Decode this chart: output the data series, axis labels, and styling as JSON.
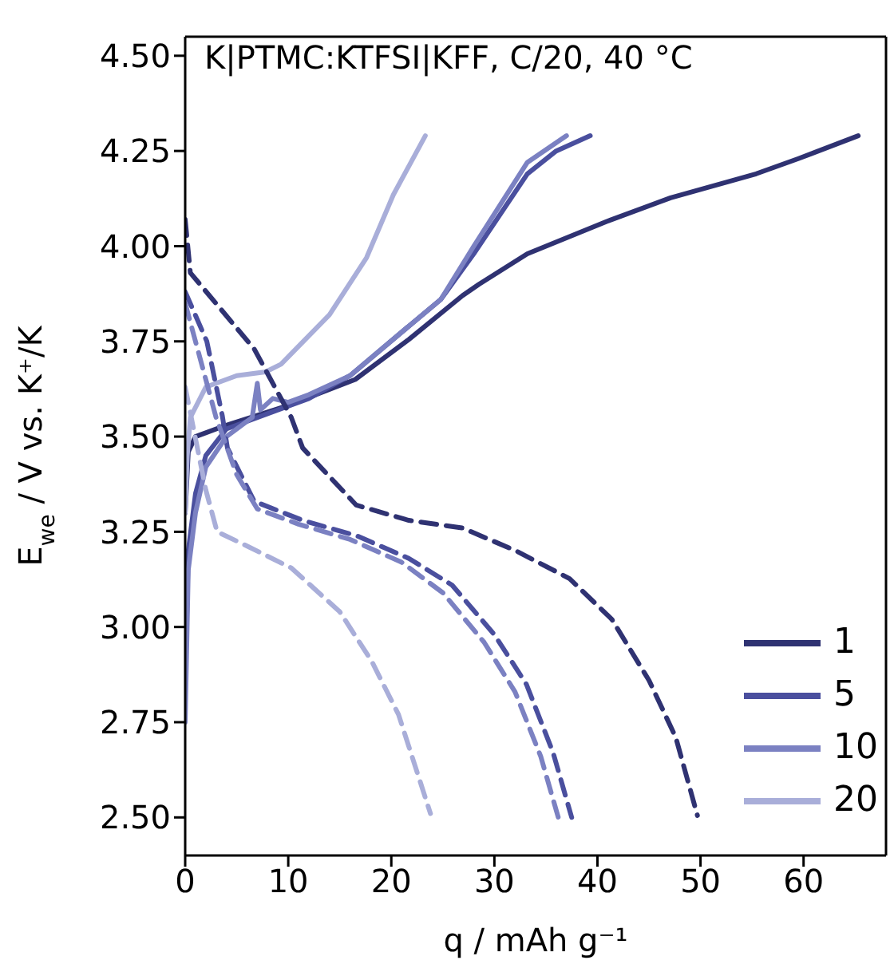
{
  "chart_data": {
    "type": "line",
    "xlabel": "q / mAh g⁻¹",
    "ylabel": "E$_{we}$ / V vs. K⁺/K",
    "annotations": [
      "K|PTMC:KTFSI|KFF, C/20, 40 °C"
    ],
    "xlim": [
      0,
      68
    ],
    "xticks": [
      0,
      10,
      20,
      30,
      40,
      50,
      60
    ],
    "ylim": [
      2.4,
      4.55
    ],
    "yticks": [
      {
        "value": 2.5,
        "label": "2.50"
      },
      {
        "value": 2.75,
        "label": "2.75"
      },
      {
        "value": 3,
        "label": "3.00"
      },
      {
        "value": 3.25,
        "label": "3.25"
      },
      {
        "value": 3.5,
        "label": "3.50"
      },
      {
        "value": 3.75,
        "label": "3.75"
      },
      {
        "value": 4,
        "label": "4.00"
      },
      {
        "value": 4.25,
        "label": "4.25"
      },
      {
        "value": 4.5,
        "label": "4.50"
      }
    ],
    "legend": "bottom right",
    "marker": "none",
    "series": [
      {
        "name": "1",
        "color": "#2f3272",
        "line_style": "solid",
        "x": [
          0,
          0.3,
          1,
          4,
          9.8,
          16.5,
          21.7,
          26.9,
          28.5,
          33.2,
          40.9,
          47.1,
          55.4,
          59.5,
          65.3
        ],
        "values": [
          3.3,
          3.46,
          3.5,
          3.53,
          3.58,
          3.65,
          3.755,
          3.87,
          3.9,
          3.98,
          4.065,
          4.127,
          4.19,
          4.23,
          4.29
        ]
      },
      {
        "name": "5",
        "color": "#4a4f9e",
        "line_style": "solid",
        "x": [
          0,
          0.3,
          1,
          2,
          4,
          8,
          12,
          16,
          21.7,
          24.8,
          28,
          33.2,
          36,
          39.3
        ],
        "values": [
          2.85,
          3.2,
          3.35,
          3.45,
          3.52,
          3.56,
          3.6,
          3.66,
          3.79,
          3.86,
          3.98,
          4.19,
          4.25,
          4.29
        ]
      },
      {
        "name": "10",
        "color": "#7b81c2",
        "line_style": "solid",
        "x": [
          0,
          0.3,
          1,
          2,
          4,
          6.5,
          7,
          7.3,
          8.5,
          10,
          12,
          16,
          21.7,
          24.8,
          28,
          33.2,
          37
        ],
        "values": [
          2.75,
          3.15,
          3.3,
          3.42,
          3.5,
          3.55,
          3.64,
          3.57,
          3.6,
          3.59,
          3.61,
          3.66,
          3.79,
          3.86,
          4.0,
          4.22,
          4.29
        ]
      },
      {
        "name": "20",
        "color": "#a9aed9",
        "line_style": "solid",
        "x": [
          0,
          0.2,
          0.5,
          2,
          5,
          7.8,
          9.3,
          14,
          17.6,
          20.2,
          23.3
        ],
        "values": [
          3.3,
          3.45,
          3.55,
          3.63,
          3.66,
          3.67,
          3.69,
          3.82,
          3.97,
          4.135,
          4.29
        ]
      },
      {
        "color": "#2f3272",
        "line_style": "dashed",
        "x": [
          0,
          0.5,
          6.7,
          10.3,
          11.4,
          16.6,
          21.7,
          26.9,
          32.1,
          37.3,
          41.4,
          45,
          47.6,
          49.7
        ],
        "values": [
          4.07,
          3.93,
          3.73,
          3.55,
          3.47,
          3.32,
          3.28,
          3.26,
          3.2,
          3.127,
          3.02,
          2.86,
          2.71,
          2.505
        ]
      },
      {
        "color": "#4a4f9e",
        "line_style": "dashed",
        "x": [
          0,
          2.1,
          3.6,
          4.1,
          6.7,
          11.4,
          16.6,
          21.7,
          25.9,
          30,
          33.1,
          35.7,
          37.5
        ],
        "values": [
          3.88,
          3.75,
          3.555,
          3.47,
          3.33,
          3.28,
          3.24,
          3.18,
          3.11,
          2.98,
          2.85,
          2.67,
          2.5
        ]
      },
      {
        "color": "#7b81c2",
        "line_style": "dashed",
        "x": [
          0,
          1.5,
          3,
          5,
          7,
          11,
          16,
          21,
          25,
          29,
          32,
          34.5,
          36.2
        ],
        "values": [
          3.85,
          3.7,
          3.55,
          3.4,
          3.31,
          3.27,
          3.23,
          3.17,
          3.09,
          2.96,
          2.83,
          2.66,
          2.5
        ]
      },
      {
        "color": "#a9aed9",
        "line_style": "dashed",
        "x": [
          0,
          2,
          3.1,
          6.2,
          10.3,
          15,
          18.1,
          20.7,
          23.8
        ],
        "values": [
          3.63,
          3.36,
          3.25,
          3.21,
          3.155,
          3.04,
          2.91,
          2.77,
          2.51
        ]
      }
    ]
  }
}
